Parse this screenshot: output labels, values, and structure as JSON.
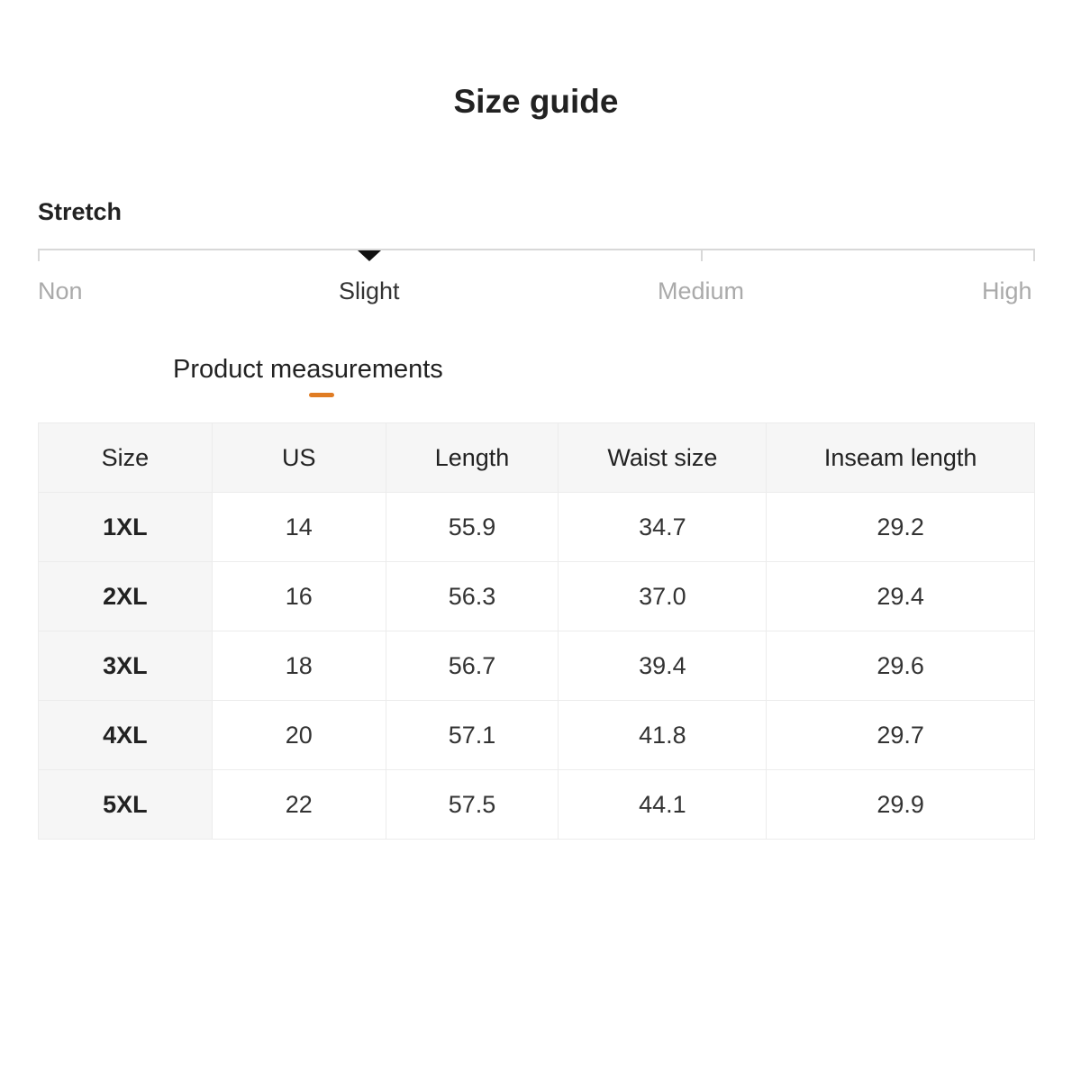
{
  "title": "Size guide",
  "stretch": {
    "label": "Stretch",
    "levels": [
      "Non",
      "Slight",
      "Medium",
      "High"
    ],
    "selected": "Slight"
  },
  "section_title": "Product measurements",
  "accent_color": "#e07c23",
  "table": {
    "headers": [
      "Size",
      "US",
      "Length",
      "Waist size",
      "Inseam length"
    ],
    "rows": [
      [
        "1XL",
        "14",
        "55.9",
        "34.7",
        "29.2"
      ],
      [
        "2XL",
        "16",
        "56.3",
        "37.0",
        "29.4"
      ],
      [
        "3XL",
        "18",
        "56.7",
        "39.4",
        "29.6"
      ],
      [
        "4XL",
        "20",
        "57.1",
        "41.8",
        "29.7"
      ],
      [
        "5XL",
        "22",
        "57.5",
        "44.1",
        "29.9"
      ]
    ]
  }
}
